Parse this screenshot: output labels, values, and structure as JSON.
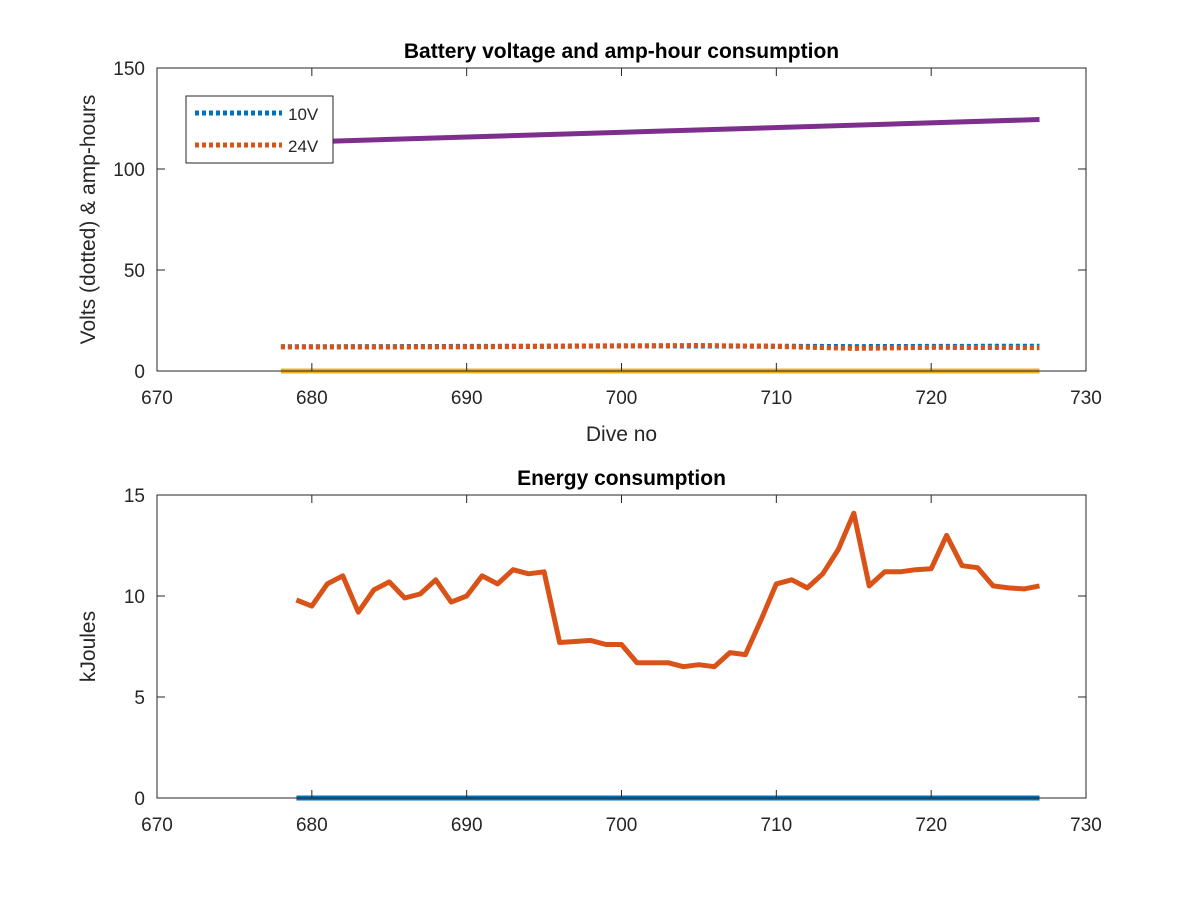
{
  "figure": {
    "background": "#ffffff"
  },
  "chart_data": [
    {
      "type": "line",
      "title": "Battery voltage and amp-hour consumption",
      "xlabel": "Dive no",
      "ylabel": "Volts (dotted) & amp-hours",
      "xlim": [
        670,
        730
      ],
      "ylim": [
        0,
        150
      ],
      "xticks": [
        670,
        680,
        690,
        700,
        710,
        720,
        730
      ],
      "yticks": [
        0,
        50,
        100,
        150
      ],
      "grid": false,
      "legend": {
        "position": "top-left",
        "entries": [
          "10V",
          "24V"
        ]
      },
      "series": [
        {
          "name": "10V",
          "style": "dotted",
          "color": "#0072bd",
          "x": [
            678,
            685,
            690,
            695,
            700,
            705,
            710,
            715,
            720,
            727
          ],
          "y": [
            12,
            12.1,
            12.2,
            12.3,
            12.5,
            12.4,
            12.3,
            12.1,
            12.2,
            12.3
          ]
        },
        {
          "name": "24V",
          "style": "dotted",
          "color": "#d95319",
          "x": [
            678,
            685,
            690,
            695,
            700,
            705,
            710,
            715,
            720,
            727
          ],
          "y": [
            12,
            11.9,
            12,
            12.2,
            12.4,
            12.6,
            12.2,
            11.2,
            11.7,
            11.6
          ]
        },
        {
          "style": "solid",
          "color": "#7e2f8e",
          "x": [
            678,
            727
          ],
          "y": [
            113,
            124.5
          ]
        },
        {
          "style": "solid",
          "color": "#edb120",
          "x": [
            678,
            727
          ],
          "y": [
            0,
            0
          ]
        }
      ]
    },
    {
      "type": "line",
      "title": "Energy consumption",
      "xlabel": "",
      "ylabel": "kJoules",
      "xlim": [
        670,
        730
      ],
      "ylim": [
        0,
        15
      ],
      "xticks": [
        670,
        680,
        690,
        700,
        710,
        720,
        730
      ],
      "yticks": [
        0,
        5,
        10,
        15
      ],
      "grid": false,
      "series": [
        {
          "style": "solid",
          "color": "#d95319",
          "x": [
            679,
            680,
            681,
            682,
            683,
            684,
            685,
            686,
            687,
            688,
            689,
            690,
            691,
            692,
            693,
            694,
            695,
            696,
            697,
            698,
            699,
            700,
            701,
            702,
            703,
            704,
            705,
            706,
            707,
            708,
            709,
            710,
            711,
            712,
            713,
            714,
            715,
            716,
            717,
            718,
            719,
            720,
            721,
            722,
            723,
            724,
            725,
            726,
            727
          ],
          "y": [
            9.8,
            9.5,
            10.6,
            11.0,
            9.2,
            10.3,
            10.7,
            9.9,
            10.1,
            10.8,
            9.7,
            10.0,
            11.0,
            10.6,
            11.3,
            11.1,
            11.2,
            7.7,
            7.75,
            7.8,
            7.6,
            7.6,
            6.7,
            6.7,
            6.7,
            6.5,
            6.6,
            6.5,
            7.2,
            7.1,
            8.8,
            10.6,
            10.8,
            10.4,
            11.1,
            12.3,
            14.1,
            10.5,
            11.2,
            11.2,
            11.3,
            11.35,
            13.0,
            11.5,
            11.4,
            10.5,
            10.4,
            10.35,
            10.5
          ]
        },
        {
          "style": "solid",
          "color": "#0072bd",
          "x": [
            679,
            727
          ],
          "y": [
            0,
            0
          ]
        }
      ]
    }
  ]
}
